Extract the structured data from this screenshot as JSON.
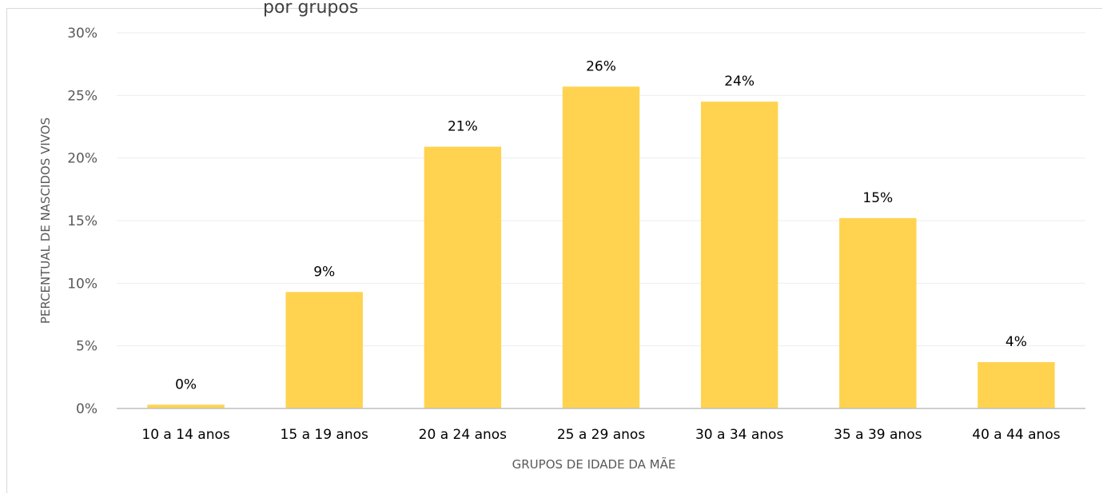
{
  "chart_data": {
    "type": "bar",
    "title_fragment": "por grupos",
    "categories": [
      "10 a 14 anos",
      "15 a 19 anos",
      "20 a 24 anos",
      "25 a 29 anos",
      "30 a 34 anos",
      "35 a 39 anos",
      "40 a 44 anos"
    ],
    "values": [
      0.3,
      9.3,
      20.9,
      25.7,
      24.5,
      15.2,
      3.7
    ],
    "data_labels": [
      "0%",
      "9%",
      "21%",
      "26%",
      "24%",
      "15%",
      "4%"
    ],
    "ylim": [
      0,
      30
    ],
    "yticks": [
      0,
      5,
      10,
      15,
      20,
      25,
      30
    ],
    "ytick_labels": [
      "0%",
      "5%",
      "10%",
      "15%",
      "20%",
      "25%",
      "30%"
    ],
    "xlabel": "GRUPOS DE IDADE DA MÃE",
    "ylabel": "PERCENTUAL DE NASCIDOS VIVOS",
    "grid": true,
    "bar_color": "#FFD34F",
    "grid_color": "#ededed",
    "axis_color": "#bfbfbf"
  }
}
